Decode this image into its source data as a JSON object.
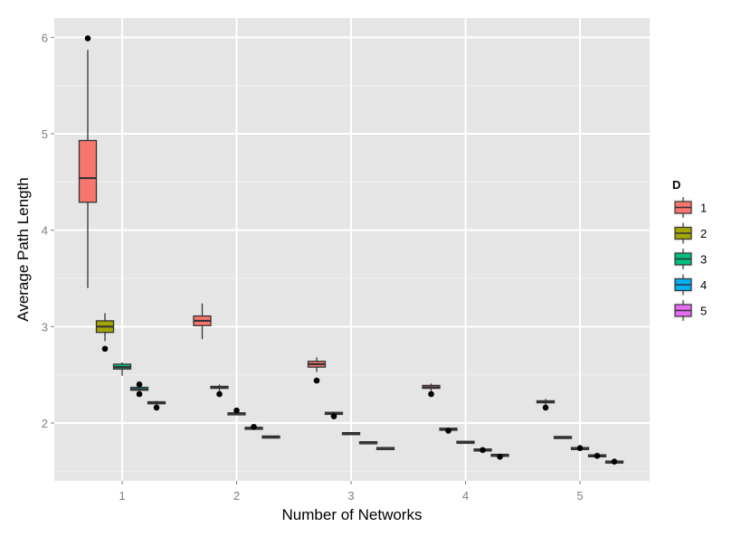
{
  "chart_data": {
    "type": "boxplot",
    "xlabel": "Number of Networks",
    "ylabel": "Average Path Length",
    "categories": [
      "1",
      "2",
      "3",
      "4",
      "5"
    ],
    "ylim": [
      1.4,
      6.2
    ],
    "yticks": [
      2,
      3,
      4,
      5,
      6
    ],
    "grid": true,
    "legend": {
      "title": "D",
      "position": "right",
      "entries": [
        "1",
        "2",
        "3",
        "4",
        "5"
      ]
    },
    "series": [
      {
        "name": "1",
        "color": "#F8766D",
        "boxes": [
          {
            "category": "1",
            "min": 3.4,
            "q1": 4.29,
            "median": 4.54,
            "q3": 4.93,
            "max": 5.87,
            "outliers": [
              5.99
            ]
          },
          {
            "category": "2",
            "min": 2.87,
            "q1": 3.01,
            "median": 3.06,
            "q3": 3.11,
            "max": 3.24,
            "outliers": []
          },
          {
            "category": "3",
            "min": 2.53,
            "q1": 2.58,
            "median": 2.61,
            "q3": 2.64,
            "max": 2.68,
            "outliers": [
              2.44
            ]
          },
          {
            "category": "4",
            "min": 2.33,
            "q1": 2.36,
            "median": 2.37,
            "q3": 2.39,
            "max": 2.41,
            "outliers": [
              2.3
            ]
          },
          {
            "category": "5",
            "min": 2.19,
            "q1": 2.21,
            "median": 2.22,
            "q3": 2.23,
            "max": 2.25,
            "outliers": [
              2.16
            ]
          }
        ]
      },
      {
        "name": "2",
        "color": "#A3A500",
        "boxes": [
          {
            "category": "1",
            "min": 2.85,
            "q1": 2.94,
            "median": 3.0,
            "q3": 3.06,
            "max": 3.14,
            "outliers": [
              2.77
            ]
          },
          {
            "category": "2",
            "min": 2.33,
            "q1": 2.36,
            "median": 2.37,
            "q3": 2.38,
            "max": 2.4,
            "outliers": [
              2.3
            ]
          },
          {
            "category": "3",
            "min": 2.08,
            "q1": 2.09,
            "median": 2.1,
            "q3": 2.11,
            "max": 2.12,
            "outliers": [
              2.07
            ]
          },
          {
            "category": "4",
            "min": 1.92,
            "q1": 1.93,
            "median": 1.94,
            "q3": 1.94,
            "max": 1.95,
            "outliers": [
              1.92
            ]
          },
          {
            "category": "5",
            "min": 1.84,
            "q1": 1.85,
            "median": 1.85,
            "q3": 1.85,
            "max": 1.86,
            "outliers": []
          }
        ]
      },
      {
        "name": "3",
        "color": "#00BF7D",
        "boxes": [
          {
            "category": "1",
            "min": 2.49,
            "q1": 2.56,
            "median": 2.58,
            "q3": 2.61,
            "max": 2.63,
            "outliers": []
          },
          {
            "category": "2",
            "min": 2.08,
            "q1": 2.09,
            "median": 2.1,
            "q3": 2.1,
            "max": 2.11,
            "outliers": [
              2.13
            ]
          },
          {
            "category": "3",
            "min": 1.88,
            "q1": 1.89,
            "median": 1.89,
            "q3": 1.89,
            "max": 1.9,
            "outliers": []
          },
          {
            "category": "4",
            "min": 1.79,
            "q1": 1.8,
            "median": 1.8,
            "q3": 1.8,
            "max": 1.81,
            "outliers": []
          },
          {
            "category": "5",
            "min": 1.72,
            "q1": 1.73,
            "median": 1.74,
            "q3": 1.74,
            "max": 1.75,
            "outliers": [
              1.74
            ]
          }
        ]
      },
      {
        "name": "4",
        "color": "#00B0F6",
        "boxes": [
          {
            "category": "1",
            "min": 2.32,
            "q1": 2.34,
            "median": 2.35,
            "q3": 2.37,
            "max": 2.38,
            "outliers": [
              2.4,
              2.3
            ]
          },
          {
            "category": "2",
            "min": 1.93,
            "q1": 1.94,
            "median": 1.95,
            "q3": 1.95,
            "max": 1.96,
            "outliers": [
              1.96
            ]
          },
          {
            "category": "3",
            "min": 1.78,
            "q1": 1.79,
            "median": 1.8,
            "q3": 1.8,
            "max": 1.81,
            "outliers": []
          },
          {
            "category": "4",
            "min": 1.7,
            "q1": 1.71,
            "median": 1.72,
            "q3": 1.73,
            "max": 1.73,
            "outliers": [
              1.72
            ]
          },
          {
            "category": "5",
            "min": 1.64,
            "q1": 1.65,
            "median": 1.66,
            "q3": 1.67,
            "max": 1.68,
            "outliers": [
              1.66
            ]
          }
        ]
      },
      {
        "name": "5",
        "color": "#E76BF3",
        "boxes": [
          {
            "category": "1",
            "min": 2.18,
            "q1": 2.2,
            "median": 2.21,
            "q3": 2.22,
            "max": 2.23,
            "outliers": [
              2.16
            ]
          },
          {
            "category": "2",
            "min": 1.84,
            "q1": 1.85,
            "median": 1.85,
            "q3": 1.86,
            "max": 1.86,
            "outliers": []
          },
          {
            "category": "3",
            "min": 1.73,
            "q1": 1.73,
            "median": 1.74,
            "q3": 1.74,
            "max": 1.75,
            "outliers": []
          },
          {
            "category": "4",
            "min": 1.65,
            "q1": 1.66,
            "median": 1.66,
            "q3": 1.67,
            "max": 1.67,
            "outliers": [
              1.65
            ]
          },
          {
            "category": "5",
            "min": 1.58,
            "q1": 1.59,
            "median": 1.6,
            "q3": 1.6,
            "max": 1.61,
            "outliers": [
              1.6
            ]
          }
        ]
      }
    ]
  },
  "colors": {
    "panel_background": "#E5E5E5",
    "grid_major": "#FFFFFF",
    "grid_minor": "#F2F2F2",
    "tick_text": "#7F7F7F",
    "box_outline": "#333333"
  }
}
